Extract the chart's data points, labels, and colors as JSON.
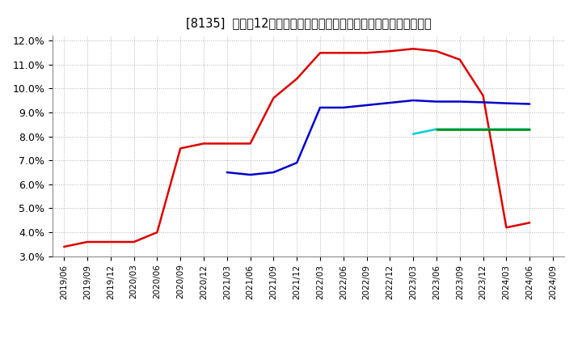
{
  "title": "[8135]  売上高12か月移動合計の対前年同期増減率の標準偏差の推移",
  "ylim": [
    0.03,
    0.122
  ],
  "yticks": [
    0.03,
    0.04,
    0.05,
    0.06,
    0.07,
    0.08,
    0.09,
    0.1,
    0.11,
    0.12
  ],
  "ytick_labels": [
    "3.0%",
    "4.0%",
    "5.0%",
    "6.0%",
    "7.0%",
    "8.0%",
    "9.0%",
    "10.0%",
    "11.0%",
    "12.0%"
  ],
  "series_3yr": {
    "color": "#dd0000",
    "x": [
      "2019/06",
      "2019/09",
      "2019/12",
      "2020/03",
      "2020/06",
      "2020/09",
      "2020/12",
      "2021/03",
      "2021/06",
      "2021/09",
      "2021/12",
      "2022/03",
      "2022/06",
      "2022/09",
      "2022/12",
      "2023/03",
      "2023/06",
      "2023/09",
      "2023/12",
      "2024/03",
      "2024/06"
    ],
    "y": [
      0.034,
      0.036,
      0.036,
      0.036,
      0.04,
      0.075,
      0.077,
      0.077,
      0.077,
      0.096,
      0.104,
      0.1148,
      0.1148,
      0.1148,
      0.1155,
      0.1165,
      0.1155,
      0.112,
      0.097,
      0.042,
      0.044
    ]
  },
  "series_5yr": {
    "color": "#0000cc",
    "x": [
      "2021/03",
      "2021/06",
      "2021/09",
      "2021/12",
      "2022/03",
      "2022/06",
      "2022/09",
      "2022/12",
      "2023/03",
      "2023/06",
      "2023/09",
      "2023/12",
      "2024/03",
      "2024/06"
    ],
    "y": [
      0.065,
      0.064,
      0.065,
      0.069,
      0.092,
      0.092,
      0.093,
      0.094,
      0.095,
      0.0945,
      0.0945,
      0.0942,
      0.0938,
      0.0935
    ]
  },
  "series_7yr": {
    "color": "#00cccc",
    "x": [
      "2023/03",
      "2023/06",
      "2023/09",
      "2023/12",
      "2024/03",
      "2024/06"
    ],
    "y": [
      0.081,
      0.083,
      0.083,
      0.083,
      0.083,
      0.083
    ]
  },
  "series_10yr": {
    "color": "#008800",
    "x": [
      "2023/06",
      "2023/09",
      "2023/12",
      "2024/03",
      "2024/06"
    ],
    "y": [
      0.083,
      0.083,
      0.083,
      0.083,
      0.083
    ]
  },
  "background_color": "#ffffff",
  "grid_color": "#aaaaaa",
  "all_xticks": [
    "2019/06",
    "2019/09",
    "2019/12",
    "2020/03",
    "2020/06",
    "2020/09",
    "2020/12",
    "2021/03",
    "2021/06",
    "2021/09",
    "2021/12",
    "2022/03",
    "2022/06",
    "2022/09",
    "2022/12",
    "2023/03",
    "2023/06",
    "2023/09",
    "2023/12",
    "2024/03",
    "2024/06",
    "2024/09"
  ]
}
